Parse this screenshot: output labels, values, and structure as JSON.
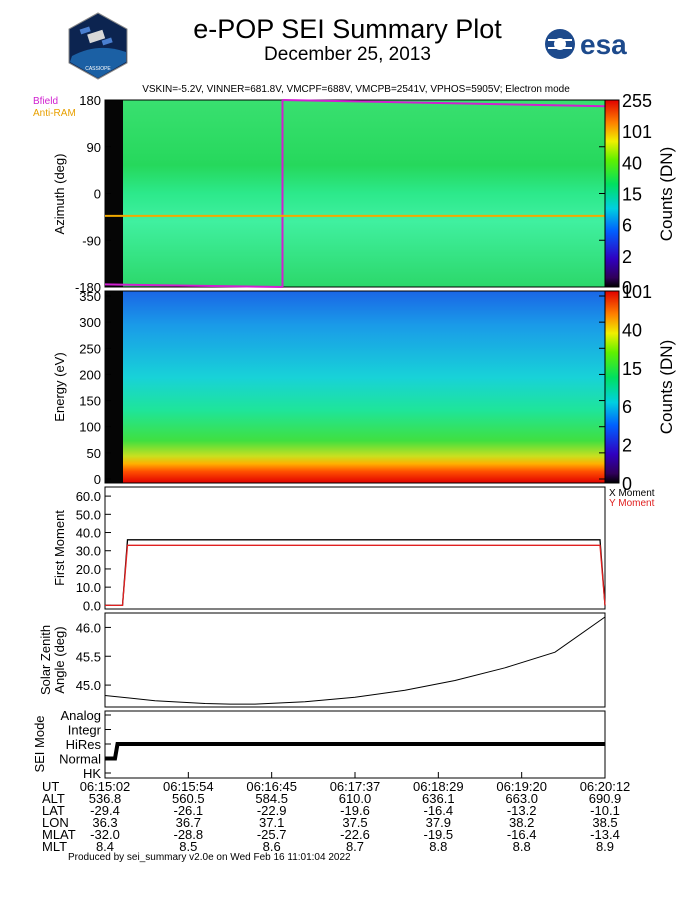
{
  "header": {
    "title": "e-POP SEI Summary Plot",
    "subtitle": "December 25, 2013",
    "logo_left_text": "CASSIOPE",
    "logo_right_text": "esa",
    "status_line": "VSKIN=-5.2V, VINNER=681.8V, VMCPF=688V, VMCPB=2541V, VPHOS=5905V; Electron mode"
  },
  "legends": {
    "bfield": "Bfield",
    "antiram": "Anti-RAM",
    "x_moment": "X Moment",
    "y_moment": "Y Moment"
  },
  "colors": {
    "bfield": "#d020d0",
    "antiram": "#f0a800",
    "x_moment": "#000000",
    "y_moment": "#e02020",
    "solar_zenith": "#000000",
    "sei_mode": "#000000"
  },
  "footer": "Produced by sei_summary v2.0e on Wed Feb 16 11:01:04 2022",
  "chart_data": [
    {
      "type": "heatmap",
      "panel": "azimuth",
      "ylabel": "Azimuth (deg)",
      "yticks": [
        "180",
        "90",
        "0",
        "-90",
        "-180"
      ],
      "ylim": [
        -180,
        180
      ],
      "colorbar_label": "Counts (DN)",
      "colorbar_ticks": [
        "255",
        "101",
        "40",
        "15",
        "6",
        "2",
        "0"
      ],
      "overlays": [
        {
          "name": "Bfield",
          "segments": [
            {
              "x": [
                0.0,
                0.355
              ],
              "y": [
                -175,
                -180
              ]
            },
            {
              "x": [
                0.355,
                0.355
              ],
              "y": [
                -180,
                180
              ]
            },
            {
              "x": [
                0.355,
                1.0
              ],
              "y": [
                180,
                168
              ]
            }
          ]
        },
        {
          "name": "Anti-RAM",
          "segments": [
            {
              "x": [
                0.0,
                1.0
              ],
              "y": [
                -43,
                -43
              ]
            }
          ]
        }
      ],
      "note_levels_dn": 15
    },
    {
      "type": "heatmap",
      "panel": "energy",
      "ylabel": "Energy (eV)",
      "yticks": [
        "350",
        "300",
        "250",
        "200",
        "150",
        "100",
        "50",
        "0"
      ],
      "ylim": [
        0,
        350
      ],
      "colorbar_label": "Counts (DN)",
      "colorbar_ticks": [
        "101",
        "40",
        "15",
        "6",
        "2",
        "0"
      ]
    },
    {
      "type": "line",
      "panel": "first_moment",
      "ylabel": "First Moment",
      "yticks": [
        "60.0",
        "50.0",
        "40.0",
        "30.0",
        "20.0",
        "10.0",
        "0.0"
      ],
      "ylim": [
        -2,
        65
      ],
      "series": [
        {
          "name": "X Moment",
          "points": [
            [
              0,
              0
            ],
            [
              0.035,
              0
            ],
            [
              0.045,
              36
            ],
            [
              0.99,
              36
            ],
            [
              1.0,
              0
            ]
          ]
        },
        {
          "name": "Y Moment",
          "points": [
            [
              0,
              0
            ],
            [
              0.035,
              0
            ],
            [
              0.045,
              33
            ],
            [
              0.99,
              33
            ],
            [
              1.0,
              0
            ]
          ]
        }
      ]
    },
    {
      "type": "line",
      "panel": "solar_zenith",
      "ylabel": "Solar Zenith Angle (deg)",
      "yticks": [
        "46.0",
        "45.5",
        "45.0"
      ],
      "ylim": [
        44.62,
        46.25
      ],
      "series": [
        {
          "name": "",
          "points": [
            [
              0.0,
              44.82
            ],
            [
              0.1,
              44.73
            ],
            [
              0.2,
              44.68
            ],
            [
              0.25,
              44.67
            ],
            [
              0.3,
              44.67
            ],
            [
              0.4,
              44.71
            ],
            [
              0.5,
              44.79
            ],
            [
              0.6,
              44.91
            ],
            [
              0.7,
              45.08
            ],
            [
              0.8,
              45.3
            ],
            [
              0.9,
              45.57
            ],
            [
              1.0,
              46.18
            ]
          ]
        }
      ]
    },
    {
      "type": "line",
      "panel": "sei_mode",
      "ylabel": "SEI Mode",
      "categories": [
        "Analog",
        "Integr",
        "HiRes",
        "Normal",
        "HK"
      ],
      "series": [
        {
          "name": "",
          "points": [
            [
              0,
              "Normal"
            ],
            [
              0.02,
              "Normal"
            ],
            [
              0.025,
              "HiRes"
            ],
            [
              1.0,
              "HiRes"
            ]
          ]
        }
      ]
    }
  ],
  "time_table": {
    "row_labels": [
      "UT",
      "ALT",
      "LAT",
      "LON",
      "MLAT",
      "MLT"
    ],
    "columns": [
      [
        "06:15:02",
        "536.8",
        "-29.4",
        "36.3",
        "-32.0",
        "8.4"
      ],
      [
        "06:15:54",
        "560.5",
        "-26.1",
        "36.7",
        "-28.8",
        "8.5"
      ],
      [
        "06:16:45",
        "584.5",
        "-22.9",
        "37.1",
        "-25.7",
        "8.6"
      ],
      [
        "06:17:37",
        "610.0",
        "-19.6",
        "37.5",
        "-22.6",
        "8.7"
      ],
      [
        "06:18:29",
        "636.1",
        "-16.4",
        "37.9",
        "-19.5",
        "8.8"
      ],
      [
        "06:19:20",
        "663.0",
        "-13.2",
        "38.2",
        "-16.4",
        "8.8"
      ],
      [
        "06:20:12",
        "690.9",
        "-10.1",
        "38.5",
        "-13.4",
        "8.9"
      ]
    ]
  }
}
